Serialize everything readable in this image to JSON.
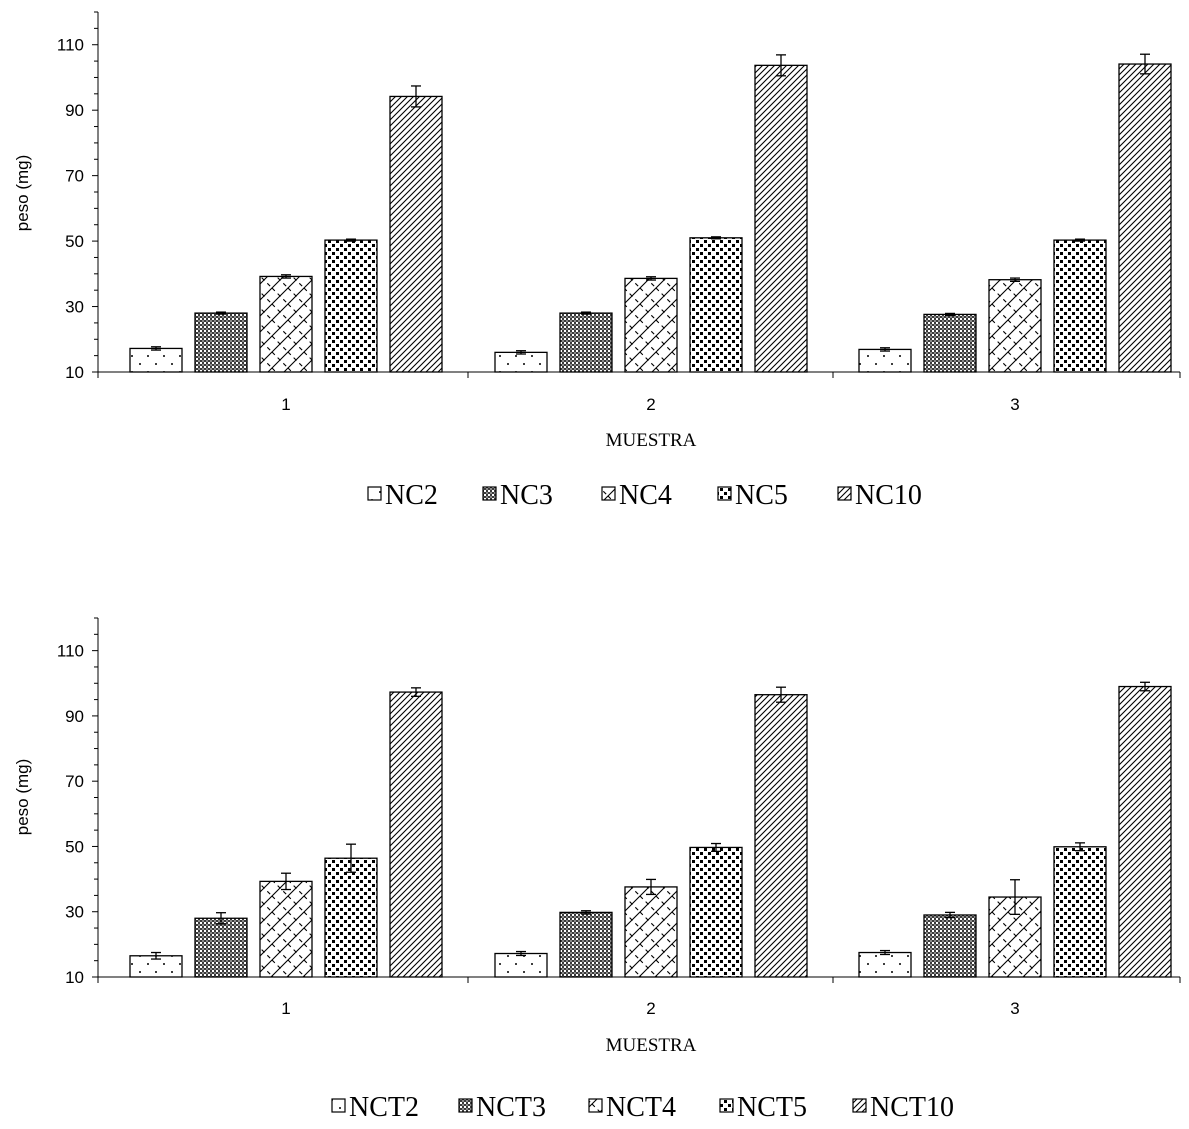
{
  "chart_data": [
    {
      "type": "bar",
      "categories": [
        "1",
        "2",
        "3"
      ],
      "xlabel": "MUESTRA",
      "ylabel": "peso (mg)",
      "ylim": [
        10,
        120
      ],
      "yticks": [
        10,
        30,
        50,
        70,
        90,
        110
      ],
      "legend_position": "bottom",
      "grid": false,
      "series": [
        {
          "name": "NC2",
          "pattern": "dots",
          "values": [
            17.2,
            16.0,
            16.9
          ],
          "errors": [
            0.5,
            0.5,
            0.5
          ]
        },
        {
          "name": "NC3",
          "pattern": "crosshatch",
          "values": [
            28.0,
            28.0,
            27.6
          ],
          "errors": [
            0.3,
            0.3,
            0.3
          ]
        },
        {
          "name": "NC4",
          "pattern": "diamond",
          "values": [
            39.2,
            38.6,
            38.2
          ],
          "errors": [
            0.5,
            0.5,
            0.5
          ]
        },
        {
          "name": "NC5",
          "pattern": "checker",
          "values": [
            50.3,
            51.0,
            50.3
          ],
          "errors": [
            0.3,
            0.3,
            0.3
          ]
        },
        {
          "name": "NC10",
          "pattern": "diagonal",
          "values": [
            94.2,
            103.7,
            104.1
          ],
          "errors": [
            3.2,
            3.2,
            3.0
          ]
        }
      ]
    },
    {
      "type": "bar",
      "categories": [
        "1",
        "2",
        "3"
      ],
      "xlabel": "MUESTRA",
      "ylabel": "peso (mg)",
      "ylim": [
        10,
        120
      ],
      "yticks": [
        10,
        30,
        50,
        70,
        90,
        110
      ],
      "legend_position": "bottom",
      "grid": false,
      "series": [
        {
          "name": "NCT2",
          "pattern": "dots",
          "values": [
            16.5,
            17.2,
            17.5
          ],
          "errors": [
            1.0,
            0.6,
            0.6
          ]
        },
        {
          "name": "NCT3",
          "pattern": "crosshatch",
          "values": [
            28.0,
            29.8,
            29.0
          ],
          "errors": [
            1.7,
            0.5,
            0.8
          ]
        },
        {
          "name": "NCT4",
          "pattern": "diamond",
          "values": [
            39.3,
            37.6,
            34.5
          ],
          "errors": [
            2.5,
            2.3,
            5.3
          ]
        },
        {
          "name": "NCT5",
          "pattern": "checker",
          "values": [
            46.4,
            49.7,
            49.9
          ],
          "errors": [
            4.3,
            1.2,
            1.2
          ]
        },
        {
          "name": "NCT10",
          "pattern": "diagonal",
          "values": [
            97.3,
            96.5,
            99.0
          ],
          "errors": [
            1.3,
            2.3,
            1.3
          ]
        }
      ]
    }
  ]
}
